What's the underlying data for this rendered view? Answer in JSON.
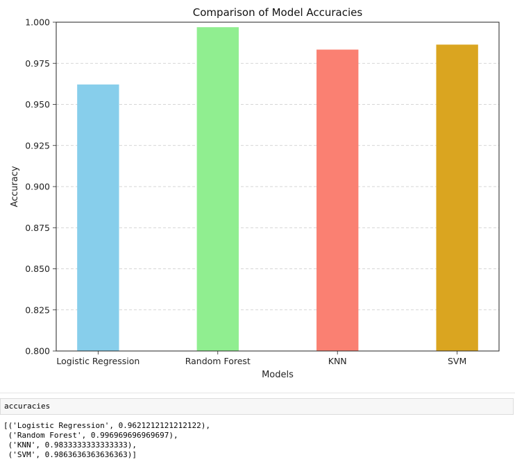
{
  "chart_data": {
    "type": "bar",
    "title": "Comparison of Model Accuracies",
    "xlabel": "Models",
    "ylabel": "Accuracy",
    "categories": [
      "Logistic Regression",
      "Random Forest",
      "KNN",
      "SVM"
    ],
    "values": [
      0.9621212121212122,
      0.996969696969697,
      0.9833333333333333,
      0.9863636363636363
    ],
    "colors": [
      "#87ceeb",
      "#90ee90",
      "#fa8072",
      "#daa520"
    ],
    "ylim": [
      0.8,
      1.0
    ],
    "yticks": [
      "0.800",
      "0.825",
      "0.850",
      "0.875",
      "0.900",
      "0.925",
      "0.950",
      "0.975",
      "1.000"
    ],
    "grid": "y-dashed"
  },
  "notebook": {
    "input_code": "accuracies",
    "output_lines": [
      "[('Logistic Regression', 0.9621212121212122),",
      " ('Random Forest', 0.996969696969697),",
      " ('KNN', 0.9833333333333333),",
      " ('SVM', 0.9863636363636363)]"
    ]
  }
}
